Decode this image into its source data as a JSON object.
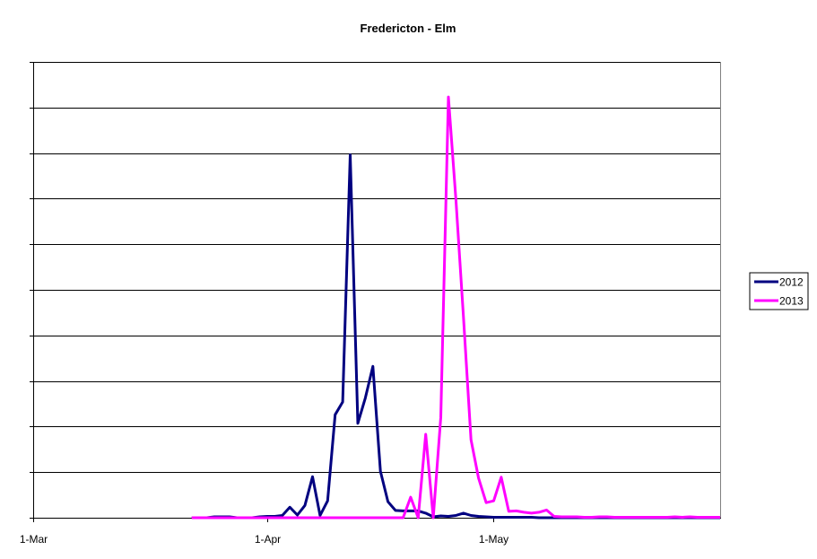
{
  "chart_data": {
    "type": "line",
    "title": "Fredericton - Elm",
    "xlabel": "",
    "ylabel": "",
    "xlim": [
      "1-Mar",
      "31-May"
    ],
    "ylim": [
      0,
      10
    ],
    "y_tick_labels_shown": false,
    "grid": "horizontal",
    "legend_position": "right",
    "x_ticks": [
      "1-Mar",
      "1-Apr",
      "1-May"
    ],
    "x": [
      "22-Mar",
      "23-Mar",
      "24-Mar",
      "25-Mar",
      "26-Mar",
      "27-Mar",
      "28-Mar",
      "29-Mar",
      "30-Mar",
      "31-Mar",
      "1-Apr",
      "2-Apr",
      "3-Apr",
      "4-Apr",
      "5-Apr",
      "6-Apr",
      "7-Apr",
      "8-Apr",
      "9-Apr",
      "10-Apr",
      "11-Apr",
      "12-Apr",
      "13-Apr",
      "14-Apr",
      "15-Apr",
      "16-Apr",
      "17-Apr",
      "18-Apr",
      "19-Apr",
      "20-Apr",
      "21-Apr",
      "22-Apr",
      "23-Apr",
      "24-Apr",
      "25-Apr",
      "26-Apr",
      "27-Apr",
      "28-Apr",
      "29-Apr",
      "30-Apr",
      "1-May",
      "2-May",
      "3-May",
      "4-May",
      "5-May",
      "6-May",
      "7-May",
      "8-May",
      "9-May",
      "10-May",
      "11-May",
      "12-May",
      "13-May",
      "14-May",
      "15-May",
      "16-May",
      "17-May",
      "18-May",
      "19-May",
      "20-May",
      "21-May",
      "22-May",
      "23-May",
      "24-May",
      "25-May",
      "26-May",
      "27-May",
      "28-May",
      "29-May",
      "30-May",
      "31-May"
    ],
    "series": [
      {
        "name": "2012",
        "color": "#000080",
        "values": [
          0,
          0,
          0,
          0.02,
          0.02,
          0.02,
          0,
          0,
          0,
          0.02,
          0.03,
          0.03,
          0.05,
          0.23,
          0.06,
          0.27,
          0.9,
          0.05,
          0.37,
          2.26,
          2.54,
          7.96,
          2.07,
          2.63,
          3.32,
          1.02,
          0.35,
          0.16,
          0.15,
          0.15,
          0.15,
          0.1,
          0.02,
          0.04,
          0.03,
          0.05,
          0.1,
          0.05,
          0.03,
          0.02,
          0.01,
          0.01,
          0.01,
          0.01,
          0.01,
          0.01,
          0,
          0,
          0,
          0,
          0,
          0,
          0,
          0,
          0,
          0,
          0,
          0,
          0,
          0,
          0,
          0,
          0,
          0,
          0,
          0,
          0,
          0,
          0,
          0,
          0
        ]
      },
      {
        "name": "2013",
        "color": "#FF00FF",
        "values": [
          0,
          0,
          0,
          0,
          0,
          0,
          0,
          0,
          0,
          0,
          0,
          0,
          0,
          0,
          0,
          0,
          0,
          0,
          0,
          0,
          0,
          0,
          0,
          0,
          0,
          0,
          0,
          0,
          0,
          0.45,
          0,
          1.83,
          0,
          2.2,
          9.23,
          6.97,
          4.4,
          1.71,
          0.87,
          0.33,
          0.37,
          0.89,
          0.14,
          0.15,
          0.12,
          0.1,
          0.12,
          0.17,
          0.03,
          0.02,
          0.02,
          0.02,
          0.01,
          0.01,
          0.02,
          0.02,
          0.01,
          0.01,
          0.01,
          0.01,
          0.01,
          0.01,
          0.01,
          0.01,
          0.02,
          0.01,
          0.02,
          0.01,
          0.01,
          0.01,
          0.01
        ]
      }
    ]
  }
}
